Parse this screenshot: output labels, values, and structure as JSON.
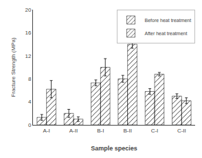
{
  "chart_data": {
    "type": "bar",
    "categories": [
      "A-I",
      "A-II",
      "B-I",
      "B-II",
      "C-I",
      "C-II"
    ],
    "series": [
      {
        "name": "Before heat treatment",
        "color": "#e8e8e8",
        "values": [
          1.3,
          2.0,
          7.3,
          8.0,
          5.8,
          5.0
        ],
        "errors": [
          0.5,
          0.7,
          0.5,
          0.6,
          0.5,
          0.4
        ]
      },
      {
        "name": "After heat treatment",
        "color": "#aaaaaa",
        "values": [
          6.2,
          1.0,
          10.0,
          14.0,
          8.8,
          4.2
        ],
        "errors": [
          1.5,
          0.4,
          1.5,
          0.7,
          0.3,
          0.5
        ]
      }
    ],
    "xlabel": "Sample species",
    "ylabel": "Fracture Strength (MPa)",
    "ylim": [
      0,
      20
    ],
    "yticks": [
      0,
      4,
      8,
      12,
      16,
      20
    ],
    "grid": false,
    "legend": "upper right"
  }
}
